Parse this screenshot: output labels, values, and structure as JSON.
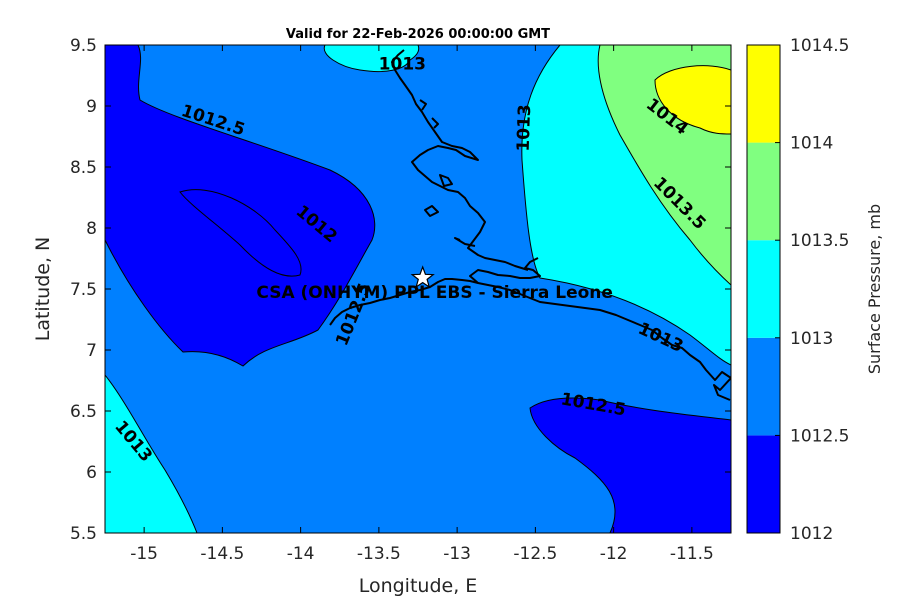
{
  "title": "Valid for 22-Feb-2026 00:00:00 GMT",
  "site_label": "CSA (ONHYM) PPL EBS  - Sierra Leone",
  "site": {
    "lon": -13.22,
    "lat": 7.59
  },
  "x_axis": {
    "label": "Longitude, E",
    "range": [
      -15.25,
      -11.25
    ],
    "ticks": [
      -15,
      -14.5,
      -14,
      -13.5,
      -13,
      -12.5,
      -12,
      -11.5
    ],
    "tick_labels": [
      "-15",
      "-14.5",
      "-14",
      "-13.5",
      "-13",
      "-12.5",
      "-12",
      "-11.5"
    ]
  },
  "y_axis": {
    "label": "Latitude, N",
    "range": [
      5.5,
      9.5
    ],
    "ticks": [
      5.5,
      6,
      6.5,
      7,
      7.5,
      8,
      8.5,
      9,
      9.5
    ],
    "tick_labels": [
      "5.5",
      "6",
      "6.5",
      "7",
      "7.5",
      "8",
      "8.5",
      "9",
      "9.5"
    ]
  },
  "colorbar": {
    "label": "Surface Pressure, mb",
    "levels": [
      1012,
      1012.5,
      1013,
      1013.5,
      1014,
      1014.5
    ],
    "level_labels": [
      "1012",
      "1012.5",
      "1013",
      "1013.5",
      "1014",
      "1014.5"
    ],
    "colors": [
      "#0000ff",
      "#0080ff",
      "#00ffff",
      "#80ff80",
      "#ffff00",
      "#ff8000"
    ]
  },
  "contour_labels": [
    {
      "text": "1012.5",
      "lon": -14.56,
      "lat": 8.88,
      "angle": 18
    },
    {
      "text": "1012",
      "lon": -13.9,
      "lat": 8.03,
      "angle": 40
    },
    {
      "text": "1012.5",
      "lon": -13.66,
      "lat": 7.29,
      "angle": -68
    },
    {
      "text": "1013",
      "lon": -13.35,
      "lat": 9.34,
      "angle": 0
    },
    {
      "text": "1013",
      "lon": -12.57,
      "lat": 8.82,
      "angle": -88
    },
    {
      "text": "1014",
      "lon": -11.66,
      "lat": 8.91,
      "angle": 38
    },
    {
      "text": "1013.5",
      "lon": -11.58,
      "lat": 8.2,
      "angle": 45
    },
    {
      "text": "1013",
      "lon": -11.7,
      "lat": 7.1,
      "angle": 25
    },
    {
      "text": "1012.5",
      "lon": -12.13,
      "lat": 6.55,
      "angle": 10
    },
    {
      "text": "1013",
      "lon": -15.07,
      "lat": 6.25,
      "angle": 50
    }
  ],
  "chart_data": {
    "type": "heatmap",
    "title": "Valid for 22-Feb-2026 00:00:00 GMT",
    "xlabel": "Longitude, E",
    "ylabel": "Latitude, N",
    "xlim": [
      -15.25,
      -11.25
    ],
    "ylim": [
      5.5,
      9.5
    ],
    "colorbar_label": "Surface Pressure, mb",
    "colorbar_range": [
      1012,
      1014.5
    ],
    "contour_levels": [
      1012,
      1012.5,
      1013,
      1013.5,
      1014
    ],
    "site": "CSA (ONHYM) PPL EBS  - Sierra Leone"
  }
}
